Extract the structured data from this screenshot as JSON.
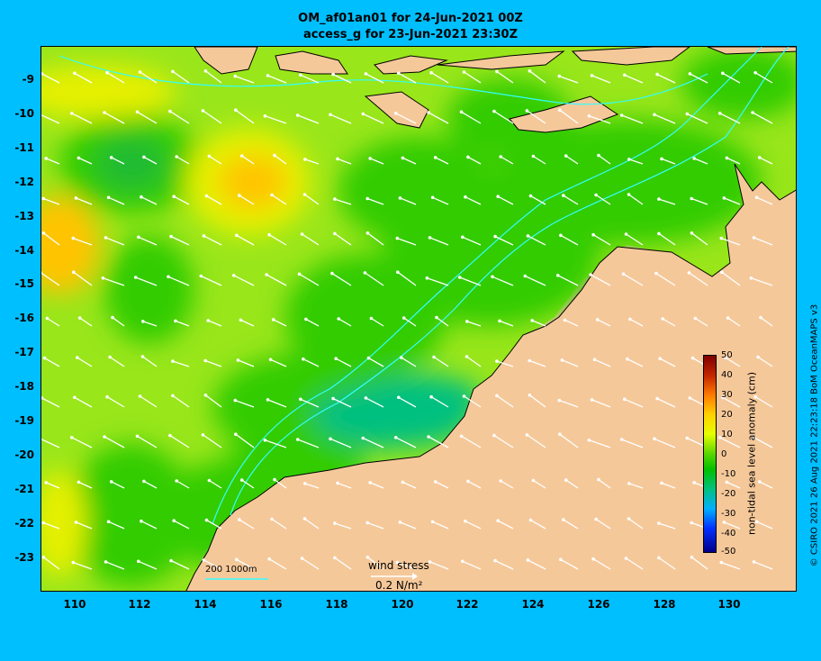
{
  "title_line1": "OM_af01an01 for 24-Jun-2021 00Z",
  "title_line2": "access_g for 23-Jun-2021 23:30Z",
  "y_ticks": [
    "-9",
    "-10",
    "-11",
    "-12",
    "-13",
    "-14",
    "-15",
    "-16",
    "-17",
    "-18",
    "-19",
    "-20",
    "-21",
    "-22",
    "-23"
  ],
  "x_ticks": [
    "110",
    "112",
    "114",
    "116",
    "118",
    "120",
    "122",
    "124",
    "126",
    "128",
    "130"
  ],
  "colorbar": {
    "title": "non-tidal sea level anomaly (cm)",
    "labels": [
      "50",
      "40",
      "30",
      "20",
      "10",
      "0",
      "-10",
      "-20",
      "-30",
      "-40",
      "-50"
    ]
  },
  "legend": {
    "wind_stress_label": "wind stress",
    "wind_stress_value": "0.2 N/m²",
    "depth_contours": "200  1000m"
  },
  "credit": "© CSIRO 2021  26 Aug 2021 22:23:18 BoM OceanMAPS v3",
  "colors": {
    "background": "#00bfff",
    "land": "#f5c89a",
    "ocean_green": "#33cc00",
    "ocean_lightgreen": "#99e61a",
    "ocean_yellow": "#e6f000",
    "ocean_orange": "#ffc400",
    "ocean_teal": "#00c080",
    "contour": "#33ffff",
    "arrow": "#ffffff"
  }
}
